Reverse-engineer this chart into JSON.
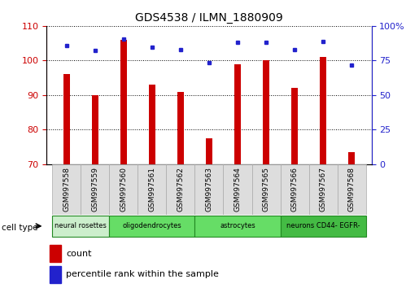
{
  "title": "GDS4538 / ILMN_1880909",
  "samples": [
    "GSM997558",
    "GSM997559",
    "GSM997560",
    "GSM997561",
    "GSM997562",
    "GSM997563",
    "GSM997564",
    "GSM997565",
    "GSM997566",
    "GSM997567",
    "GSM997568"
  ],
  "count_values": [
    96,
    90,
    106,
    93,
    91,
    77.5,
    99,
    100,
    92,
    101,
    73.5
  ],
  "percentile_values": [
    85.5,
    82,
    90.5,
    84.5,
    83,
    73.5,
    88,
    88,
    83,
    89,
    71.5
  ],
  "ylim_left": [
    70,
    110
  ],
  "yticks_left": [
    70,
    80,
    90,
    100,
    110
  ],
  "ylim_right": [
    0,
    100
  ],
  "yticks_right": [
    0,
    25,
    50,
    75,
    100
  ],
  "yticklabels_right": [
    "0",
    "25",
    "50",
    "75",
    "100%"
  ],
  "bar_color": "#cc0000",
  "dot_color": "#2222cc",
  "bar_width": 0.25,
  "cell_type_groups": [
    {
      "label": "neural rosettes",
      "start": 0,
      "end": 2,
      "color": "#cceecc"
    },
    {
      "label": "oligodendrocytes",
      "start": 2,
      "end": 5,
      "color": "#66dd66"
    },
    {
      "label": "astrocytes",
      "start": 5,
      "end": 8,
      "color": "#66dd66"
    },
    {
      "label": "neurons CD44- EGFR-",
      "start": 8,
      "end": 11,
      "color": "#44bb44"
    }
  ],
  "legend_count_label": "count",
  "legend_pct_label": "percentile rank within the sample",
  "cell_type_label": "cell type",
  "tick_color_left": "#cc0000",
  "tick_color_right": "#2222cc",
  "xtick_bg_color": "#dddddd",
  "xtick_border_color": "#aaaaaa"
}
